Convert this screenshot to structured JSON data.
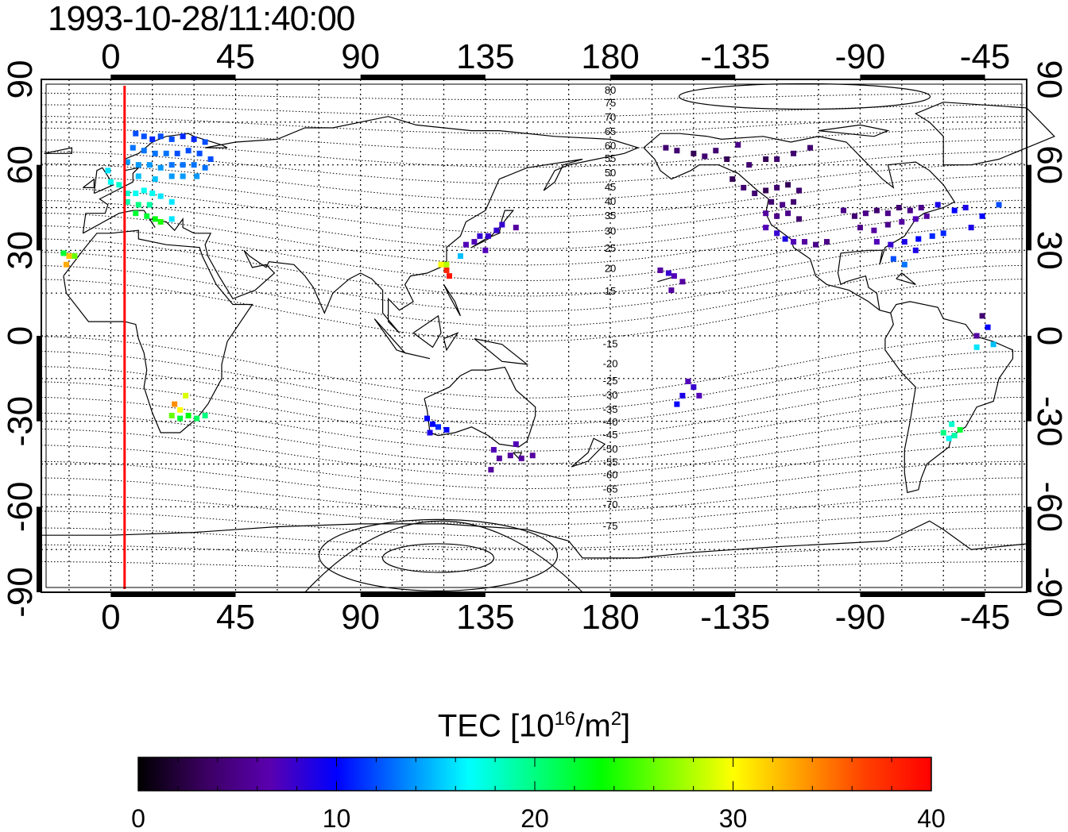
{
  "title": "1993-10-28/11:40:00",
  "map": {
    "lon_labels": [
      "0",
      "45",
      "90",
      "135",
      "180",
      "-135",
      "-90",
      "-45"
    ],
    "lon_values": [
      0,
      45,
      90,
      135,
      180,
      225,
      270,
      315
    ],
    "lat_labels": [
      "90",
      "60",
      "30",
      "0",
      "-30",
      "-60",
      "-90"
    ],
    "lat_values": [
      90,
      60,
      30,
      0,
      -30,
      -60,
      -90
    ],
    "lon_range": [
      -25,
      330
    ],
    "lat_range": [
      -90,
      90
    ],
    "grid": "dotted every 15 deg",
    "marker_longitude": 5,
    "marker_color": "#ff0000",
    "contour_labels": [
      {
        "text": "80",
        "lon": 180,
        "lat": 85
      },
      {
        "text": "75",
        "lon": 180,
        "lat": 80.5
      },
      {
        "text": "70",
        "lon": 180,
        "lat": 75.5
      },
      {
        "text": "65",
        "lon": 180,
        "lat": 70.5
      },
      {
        "text": "60",
        "lon": 180,
        "lat": 65.5
      },
      {
        "text": "55",
        "lon": 180,
        "lat": 61
      },
      {
        "text": "50",
        "lon": 180,
        "lat": 56
      },
      {
        "text": "45",
        "lon": 180,
        "lat": 51
      },
      {
        "text": "40",
        "lon": 180,
        "lat": 46
      },
      {
        "text": "35",
        "lon": 180,
        "lat": 41
      },
      {
        "text": "30",
        "lon": 180,
        "lat": 35.5
      },
      {
        "text": "25",
        "lon": 180,
        "lat": 29.5
      },
      {
        "text": "20",
        "lon": 180,
        "lat": 22.5
      },
      {
        "text": "15",
        "lon": 180,
        "lat": 14.5
      },
      {
        "text": "-15",
        "lon": 180,
        "lat": -4
      },
      {
        "text": "-20",
        "lon": 180,
        "lat": -11
      },
      {
        "text": "-25",
        "lon": 180,
        "lat": -17
      },
      {
        "text": "-30",
        "lon": 180,
        "lat": -22
      },
      {
        "text": "-35",
        "lon": 180,
        "lat": -27
      },
      {
        "text": "-40",
        "lon": 180,
        "lat": -31.5
      },
      {
        "text": "-45",
        "lon": 180,
        "lat": -36
      },
      {
        "text": "-50",
        "lon": 180,
        "lat": -41
      },
      {
        "text": "-55",
        "lon": 180,
        "lat": -45.5
      },
      {
        "text": "-60",
        "lon": 180,
        "lat": -50
      },
      {
        "text": "-65",
        "lon": 180,
        "lat": -55
      },
      {
        "text": "-70",
        "lon": 180,
        "lat": -60.5
      },
      {
        "text": "-75",
        "lon": 180,
        "lat": -68
      }
    ],
    "tec_points": [
      {
        "lon": 9,
        "lat": 71,
        "tec": 12
      },
      {
        "lon": 12,
        "lat": 70,
        "tec": 12
      },
      {
        "lon": 15,
        "lat": 69,
        "tec": 11
      },
      {
        "lon": 18,
        "lat": 70,
        "tec": 12
      },
      {
        "lon": 22,
        "lat": 69,
        "tec": 12
      },
      {
        "lon": 26,
        "lat": 70,
        "tec": 11
      },
      {
        "lon": 30,
        "lat": 69,
        "tec": 11
      },
      {
        "lon": 34,
        "lat": 68,
        "tec": 12
      },
      {
        "lon": 8,
        "lat": 66,
        "tec": 13
      },
      {
        "lon": 12,
        "lat": 65,
        "tec": 13
      },
      {
        "lon": 16,
        "lat": 64,
        "tec": 13
      },
      {
        "lon": 20,
        "lat": 64,
        "tec": 13
      },
      {
        "lon": 24,
        "lat": 64,
        "tec": 12
      },
      {
        "lon": 28,
        "lat": 65,
        "tec": 12
      },
      {
        "lon": 32,
        "lat": 64,
        "tec": 12
      },
      {
        "lon": 36,
        "lat": 62,
        "tec": 12
      },
      {
        "lon": 6,
        "lat": 61,
        "tec": 14
      },
      {
        "lon": 10,
        "lat": 60,
        "tec": 14
      },
      {
        "lon": 14,
        "lat": 60,
        "tec": 14
      },
      {
        "lon": 18,
        "lat": 59,
        "tec": 14
      },
      {
        "lon": 22,
        "lat": 60,
        "tec": 13
      },
      {
        "lon": 26,
        "lat": 60,
        "tec": 13
      },
      {
        "lon": 30,
        "lat": 60,
        "tec": 13
      },
      {
        "lon": 34,
        "lat": 59,
        "tec": 13
      },
      {
        "lon": 10,
        "lat": 56,
        "tec": 15
      },
      {
        "lon": 16,
        "lat": 55,
        "tec": 15
      },
      {
        "lon": 22,
        "lat": 56,
        "tec": 14
      },
      {
        "lon": 26,
        "lat": 56,
        "tec": 14
      },
      {
        "lon": 31,
        "lat": 56,
        "tec": 14
      },
      {
        "lon": -1,
        "lat": 58,
        "tec": 16
      },
      {
        "lon": 0,
        "lat": 54,
        "tec": 17
      },
      {
        "lon": 3,
        "lat": 53,
        "tec": 18
      },
      {
        "lon": 6,
        "lat": 50,
        "tec": 18
      },
      {
        "lon": 9,
        "lat": 50,
        "tec": 17
      },
      {
        "lon": 12,
        "lat": 51,
        "tec": 17
      },
      {
        "lon": 15,
        "lat": 50,
        "tec": 17
      },
      {
        "lon": 18,
        "lat": 49,
        "tec": 16
      },
      {
        "lon": 6,
        "lat": 47,
        "tec": 19
      },
      {
        "lon": 10,
        "lat": 46,
        "tec": 20
      },
      {
        "lon": 14,
        "lat": 46,
        "tec": 19
      },
      {
        "lon": 22,
        "lat": 47,
        "tec": 16
      },
      {
        "lon": 9,
        "lat": 43,
        "tec": 22
      },
      {
        "lon": 13,
        "lat": 42,
        "tec": 22
      },
      {
        "lon": 16,
        "lat": 41,
        "tec": 23
      },
      {
        "lon": 18,
        "lat": 40,
        "tec": 24
      },
      {
        "lon": 22,
        "lat": 41,
        "tec": 16
      },
      {
        "lon": -17,
        "lat": 29,
        "tec": 22
      },
      {
        "lon": -15,
        "lat": 28,
        "tec": 32
      },
      {
        "lon": -13,
        "lat": 28,
        "tec": 26
      },
      {
        "lon": -16,
        "lat": 25,
        "tec": 33
      },
      {
        "lon": 23,
        "lat": -24,
        "tec": 34
      },
      {
        "lon": 27,
        "lat": -21,
        "tec": 29
      },
      {
        "lon": 25,
        "lat": -26,
        "tec": 30
      },
      {
        "lon": 22,
        "lat": -28,
        "tec": 26
      },
      {
        "lon": 25,
        "lat": -29,
        "tec": 22
      },
      {
        "lon": 28,
        "lat": -28,
        "tec": 23
      },
      {
        "lon": 31,
        "lat": -29,
        "tec": 21
      },
      {
        "lon": 34,
        "lat": -28,
        "tec": 20
      },
      {
        "lon": 119,
        "lat": 25,
        "tec": 30
      },
      {
        "lon": 121,
        "lat": 25,
        "tec": 28
      },
      {
        "lon": 121,
        "lat": 23,
        "tec": 38
      },
      {
        "lon": 122,
        "lat": 21,
        "tec": 39
      },
      {
        "lon": 126,
        "lat": 28,
        "tec": 15
      },
      {
        "lon": 128,
        "lat": 32,
        "tec": 7
      },
      {
        "lon": 131,
        "lat": 33,
        "tec": 7
      },
      {
        "lon": 133,
        "lat": 35,
        "tec": 8
      },
      {
        "lon": 136,
        "lat": 35,
        "tec": 8
      },
      {
        "lon": 139,
        "lat": 37,
        "tec": 8
      },
      {
        "lon": 141,
        "lat": 39,
        "tec": 8
      },
      {
        "lon": 146,
        "lat": 38,
        "tec": 6
      },
      {
        "lon": 135,
        "lat": 30,
        "tec": 7
      },
      {
        "lon": 114,
        "lat": -29,
        "tec": 10
      },
      {
        "lon": 116,
        "lat": -31,
        "tec": 10
      },
      {
        "lon": 118,
        "lat": -32,
        "tec": 11
      },
      {
        "lon": 121,
        "lat": -33,
        "tec": 10
      },
      {
        "lon": 115,
        "lat": -34,
        "tec": 9
      },
      {
        "lon": 138,
        "lat": -40,
        "tec": 7
      },
      {
        "lon": 140,
        "lat": -43,
        "tec": 6
      },
      {
        "lon": 144,
        "lat": -42,
        "tec": 6
      },
      {
        "lon": 148,
        "lat": -43,
        "tec": 6
      },
      {
        "lon": 152,
        "lat": -42,
        "tec": 6
      },
      {
        "lon": 146,
        "lat": -38,
        "tec": 7
      },
      {
        "lon": 137,
        "lat": -47,
        "tec": 6
      },
      {
        "lon": 198,
        "lat": 23,
        "tec": 6
      },
      {
        "lon": 201,
        "lat": 22,
        "tec": 8
      },
      {
        "lon": 203,
        "lat": 21,
        "tec": 7
      },
      {
        "lon": 206,
        "lat": 19,
        "tec": 6
      },
      {
        "lon": 202,
        "lat": 16,
        "tec": 6
      },
      {
        "lon": 208,
        "lat": -16,
        "tec": 7
      },
      {
        "lon": 210,
        "lat": -18,
        "tec": 8
      },
      {
        "lon": 206,
        "lat": -21,
        "tec": 9
      },
      {
        "lon": 212,
        "lat": -21,
        "tec": 7
      },
      {
        "lon": 204,
        "lat": -24,
        "tec": 10
      },
      {
        "lon": 200,
        "lat": 66,
        "tec": 4
      },
      {
        "lon": 204,
        "lat": 65,
        "tec": 4
      },
      {
        "lon": 210,
        "lat": 64,
        "tec": 3
      },
      {
        "lon": 214,
        "lat": 63,
        "tec": 4
      },
      {
        "lon": 218,
        "lat": 65,
        "tec": 4
      },
      {
        "lon": 222,
        "lat": 62,
        "tec": 3
      },
      {
        "lon": 226,
        "lat": 67,
        "tec": 5
      },
      {
        "lon": 230,
        "lat": 60,
        "tec": 4
      },
      {
        "lon": 236,
        "lat": 62,
        "tec": 3
      },
      {
        "lon": 240,
        "lat": 62,
        "tec": 4
      },
      {
        "lon": 246,
        "lat": 64,
        "tec": 4
      },
      {
        "lon": 252,
        "lat": 66,
        "tec": 4
      },
      {
        "lon": 224,
        "lat": 55,
        "tec": 3
      },
      {
        "lon": 228,
        "lat": 52,
        "tec": 4
      },
      {
        "lon": 232,
        "lat": 50,
        "tec": 4
      },
      {
        "lon": 236,
        "lat": 51,
        "tec": 3
      },
      {
        "lon": 240,
        "lat": 52,
        "tec": 4
      },
      {
        "lon": 244,
        "lat": 53,
        "tec": 3
      },
      {
        "lon": 248,
        "lat": 51,
        "tec": 4
      },
      {
        "lon": 238,
        "lat": 47,
        "tec": 4
      },
      {
        "lon": 242,
        "lat": 46,
        "tec": 5
      },
      {
        "lon": 246,
        "lat": 47,
        "tec": 4
      },
      {
        "lon": 236,
        "lat": 43,
        "tec": 6
      },
      {
        "lon": 240,
        "lat": 42,
        "tec": 5
      },
      {
        "lon": 244,
        "lat": 43,
        "tec": 5
      },
      {
        "lon": 248,
        "lat": 41,
        "tec": 4
      },
      {
        "lon": 236,
        "lat": 38,
        "tec": 7
      },
      {
        "lon": 240,
        "lat": 36,
        "tec": 8
      },
      {
        "lon": 243,
        "lat": 34,
        "tec": 9
      },
      {
        "lon": 246,
        "lat": 33,
        "tec": 7
      },
      {
        "lon": 250,
        "lat": 33,
        "tec": 6
      },
      {
        "lon": 254,
        "lat": 32,
        "tec": 5
      },
      {
        "lon": 258,
        "lat": 33,
        "tec": 5
      },
      {
        "lon": 264,
        "lat": 44,
        "tec": 5
      },
      {
        "lon": 268,
        "lat": 42,
        "tec": 4
      },
      {
        "lon": 272,
        "lat": 43,
        "tec": 5
      },
      {
        "lon": 276,
        "lat": 44,
        "tec": 4
      },
      {
        "lon": 280,
        "lat": 43,
        "tec": 5
      },
      {
        "lon": 284,
        "lat": 45,
        "tec": 4
      },
      {
        "lon": 288,
        "lat": 44,
        "tec": 5
      },
      {
        "lon": 292,
        "lat": 45,
        "tec": 5
      },
      {
        "lon": 270,
        "lat": 38,
        "tec": 5
      },
      {
        "lon": 275,
        "lat": 37,
        "tec": 6
      },
      {
        "lon": 280,
        "lat": 39,
        "tec": 5
      },
      {
        "lon": 285,
        "lat": 40,
        "tec": 6
      },
      {
        "lon": 290,
        "lat": 41,
        "tec": 7
      },
      {
        "lon": 294,
        "lat": 42,
        "tec": 6
      },
      {
        "lon": 276,
        "lat": 33,
        "tec": 7
      },
      {
        "lon": 281,
        "lat": 32,
        "tec": 8
      },
      {
        "lon": 286,
        "lat": 33,
        "tec": 9
      },
      {
        "lon": 291,
        "lat": 34,
        "tec": 10
      },
      {
        "lon": 296,
        "lat": 35,
        "tec": 11
      },
      {
        "lon": 300,
        "lat": 36,
        "tec": 11
      },
      {
        "lon": 282,
        "lat": 27,
        "tec": 12
      },
      {
        "lon": 286,
        "lat": 25,
        "tec": 13
      },
      {
        "lon": 290,
        "lat": 30,
        "tec": 9
      },
      {
        "lon": 298,
        "lat": 46,
        "tec": 9
      },
      {
        "lon": 304,
        "lat": 44,
        "tec": 10
      },
      {
        "lon": 308,
        "lat": 45,
        "tec": 9
      },
      {
        "lon": 314,
        "lat": 42,
        "tec": 10
      },
      {
        "lon": 310,
        "lat": 38,
        "tec": 9
      },
      {
        "lon": 320,
        "lat": 46,
        "tec": 12
      },
      {
        "lon": 314,
        "lat": 7,
        "tec": 4
      },
      {
        "lon": 316,
        "lat": 3,
        "tec": 10
      },
      {
        "lon": 312,
        "lat": 0,
        "tec": 6
      },
      {
        "lon": 318,
        "lat": -3,
        "tec": 15
      },
      {
        "lon": 312,
        "lat": -4,
        "tec": 16
      },
      {
        "lon": 303,
        "lat": -31,
        "tec": 18
      },
      {
        "lon": 300,
        "lat": -34,
        "tec": 20
      },
      {
        "lon": 304,
        "lat": -35,
        "tec": 19
      },
      {
        "lon": 306,
        "lat": -33,
        "tec": 22
      },
      {
        "lon": 302,
        "lat": -36,
        "tec": 17
      }
    ]
  },
  "colorbar": {
    "title_prefix": "TEC  [10",
    "title_exp": "16",
    "title_mid": "/m",
    "title_exp2": "2",
    "title_suffix": "]",
    "ticks": [
      "0",
      "10",
      "20",
      "30",
      "40"
    ],
    "range": [
      0,
      40
    ],
    "colors": [
      "#000000",
      "#3a0060",
      "#5a00b0",
      "#0000ff",
      "#0080ff",
      "#00ffff",
      "#00ff80",
      "#00ff00",
      "#80ff00",
      "#ffff00",
      "#ffa000",
      "#ff4000",
      "#ff0000"
    ]
  }
}
